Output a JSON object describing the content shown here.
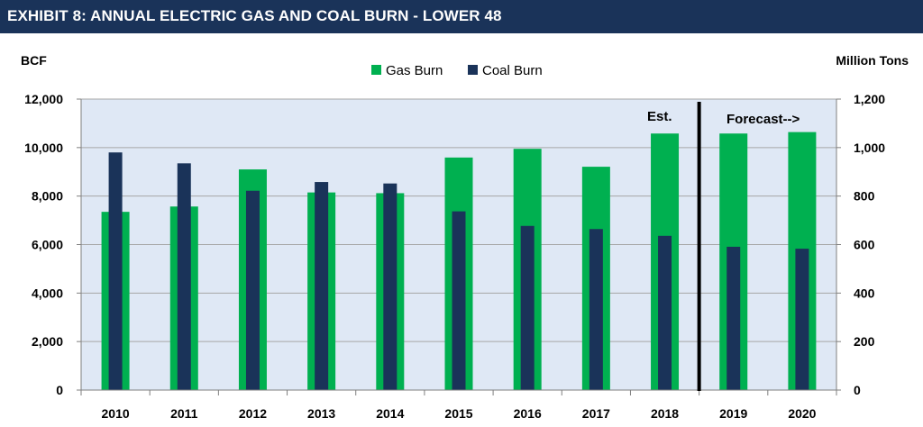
{
  "header": {
    "title": "EXHIBIT 8: ANNUAL ELECTRIC GAS AND COAL BURN - LOWER 48"
  },
  "chart_data": {
    "type": "bar",
    "categories": [
      "2010",
      "2011",
      "2012",
      "2013",
      "2014",
      "2015",
      "2016",
      "2017",
      "2018",
      "2019",
      "2020"
    ],
    "series": [
      {
        "name": "Gas Burn",
        "axis": "left",
        "color": "#00b050",
        "values": [
          7350,
          7570,
          9100,
          8150,
          8120,
          9590,
          9950,
          9210,
          10580,
          10580,
          10640
        ]
      },
      {
        "name": "Coal Burn",
        "axis": "right",
        "color": "#1a3359",
        "values": [
          980,
          935,
          822,
          858,
          852,
          737,
          677,
          664,
          636,
          591,
          583
        ]
      }
    ],
    "ylabel_left": "BCF",
    "ylabel_right": "Million Tons",
    "ylim_left": [
      0,
      12000
    ],
    "ylim_right": [
      0,
      1200
    ],
    "yticks_left": [
      "0",
      "2,000",
      "4,000",
      "6,000",
      "8,000",
      "10,000",
      "12,000"
    ],
    "yticks_right": [
      "0",
      "200",
      "400",
      "600",
      "800",
      "1,000",
      "1,200"
    ],
    "legend_position": "top-center",
    "annotations": {
      "est": "Est.",
      "forecast": "Forecast-->"
    },
    "divider_after_category": "2018",
    "plot_background": "#dfe8f5",
    "grid": true
  }
}
